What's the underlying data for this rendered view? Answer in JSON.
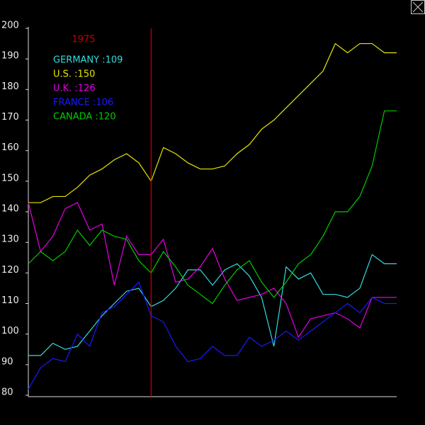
{
  "chart_data": {
    "type": "line",
    "categories": [
      null,
      null,
      null,
      null,
      null,
      null,
      null,
      null,
      null,
      null,
      "1975",
      null,
      null,
      null,
      null,
      null,
      null,
      null,
      null,
      null,
      null,
      null,
      null,
      null,
      null,
      null,
      null,
      null,
      null,
      null,
      null
    ],
    "cursor_color": "#cc0000",
    "legend_labels": [
      "GERMANY :109",
      "U.S. :150",
      "U.K. :126",
      "FRANCE :106",
      "CANADA :120"
    ],
    "series": [
      {
        "name": "GERMANY",
        "color": "#33dddd",
        "values": [
          93,
          93,
          97,
          95,
          96,
          101,
          106,
          110,
          114,
          115,
          109,
          111,
          115,
          121,
          121,
          116,
          121,
          123,
          119,
          112,
          96,
          122,
          118,
          120,
          113,
          113,
          112,
          115,
          126,
          123,
          123
        ]
      },
      {
        "name": "U.S.",
        "color": "#e6e600",
        "values": [
          143,
          143,
          145,
          145,
          148,
          152,
          154,
          157,
          159,
          156,
          150,
          161,
          159,
          156,
          154,
          154,
          155,
          159,
          162,
          167,
          170,
          174,
          178,
          182,
          186,
          195,
          192,
          195,
          195,
          192,
          192
        ]
      },
      {
        "name": "U.K.",
        "color": "#e600e6",
        "values": [
          143,
          127,
          132,
          141,
          143,
          134,
          136,
          116,
          132,
          126,
          126,
          131,
          117,
          118,
          122,
          128,
          118,
          111,
          112,
          113,
          115,
          110,
          99,
          105,
          106,
          107,
          105,
          102,
          112,
          112,
          112
        ]
      },
      {
        "name": "FRANCE",
        "color": "#1a1aff",
        "values": [
          82,
          89,
          92,
          91,
          100,
          96,
          107,
          109,
          113,
          117,
          106,
          104,
          96,
          91,
          92,
          96,
          93,
          93,
          99,
          96,
          98,
          101,
          98,
          101,
          104,
          107,
          110,
          107,
          112,
          110,
          110
        ]
      },
      {
        "name": "CANADA",
        "color": "#00cc00",
        "values": [
          123,
          127,
          124,
          127,
          134,
          129,
          134,
          132,
          131,
          124,
          120,
          127,
          122,
          116,
          113,
          110,
          116,
          121,
          124,
          117,
          112,
          117,
          123,
          126,
          132,
          140,
          140,
          145,
          155,
          173,
          173
        ]
      }
    ],
    "ylim": [
      80,
      200
    ],
    "yticks": [
      80,
      90,
      100,
      110,
      120,
      130,
      140,
      150,
      160,
      170,
      180,
      190,
      200
    ]
  }
}
